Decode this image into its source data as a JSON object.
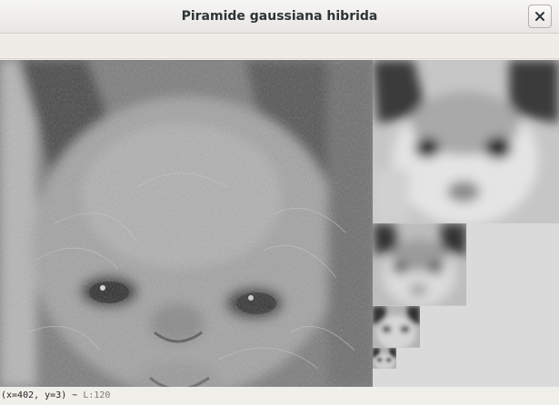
{
  "window": {
    "title": "Piramide gaussiana hibrida",
    "close_icon": "close-icon"
  },
  "pyramid": {
    "levels": [
      {
        "label": "level-0-hybrid-detail",
        "scale": "1"
      },
      {
        "label": "level-1",
        "scale": "1/2"
      },
      {
        "label": "level-2",
        "scale": "1/4"
      },
      {
        "label": "level-3",
        "scale": "1/8"
      },
      {
        "label": "level-4",
        "scale": "1/16"
      }
    ],
    "background_color": "#dadada"
  },
  "status": {
    "coords": "(x=402, y=3) ~ ",
    "luma": "L:120"
  }
}
